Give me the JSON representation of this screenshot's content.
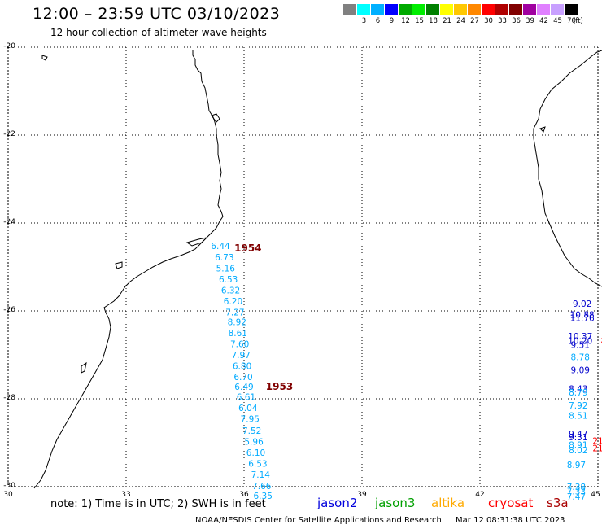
{
  "header": {
    "title": "12:00 – 23:59 UTC 03/10/2023",
    "subtitle": "12 hour collection of altimeter wave heights"
  },
  "legend": {
    "colors": [
      "#808080",
      "#00ffff",
      "#00b0ff",
      "#0000ff",
      "#00aa00",
      "#00ee00",
      "#008000",
      "#ffff00",
      "#ffc800",
      "#ff8800",
      "#ff0000",
      "#b00000",
      "#800000",
      "#a000a0",
      "#e080ff",
      "#c8a0ff",
      "#000000"
    ],
    "labels": [
      "3",
      "6",
      "9",
      "12",
      "15",
      "18",
      "21",
      "24",
      "27",
      "30",
      "33",
      "36",
      "39",
      "42",
      "45",
      "70"
    ],
    "unit": "(ft)"
  },
  "axes": {
    "lat_labels": [
      "-20",
      "-22",
      "-24",
      "-26",
      "-28",
      "-30"
    ],
    "lon_labels": [
      "30",
      "33",
      "36",
      "39",
      "42",
      "45"
    ]
  },
  "tracks": [
    {
      "color": "#00aaff",
      "points": [
        {
          "lon": 35.4,
          "lat": -24.52,
          "v": "6.44"
        },
        {
          "lon": 35.5,
          "lat": -24.78,
          "v": "6.73"
        },
        {
          "lon": 35.53,
          "lat": -25.03,
          "v": "5.16"
        },
        {
          "lon": 35.6,
          "lat": -25.28,
          "v": "6.53"
        },
        {
          "lon": 35.66,
          "lat": -25.53,
          "v": "6.32"
        },
        {
          "lon": 35.72,
          "lat": -25.78,
          "v": "6.20"
        },
        {
          "lon": 35.77,
          "lat": -26.03,
          "v": "7.27"
        },
        {
          "lon": 35.82,
          "lat": -26.25,
          "v": "8.92"
        },
        {
          "lon": 35.84,
          "lat": -26.5,
          "v": "8.61"
        },
        {
          "lon": 35.89,
          "lat": -26.75,
          "v": "7.60"
        },
        {
          "lon": 35.92,
          "lat": -27.0,
          "v": "7.97"
        },
        {
          "lon": 35.95,
          "lat": -27.25,
          "v": "6.80"
        },
        {
          "lon": 35.98,
          "lat": -27.5,
          "v": "6.70"
        },
        {
          "lon": 36.0,
          "lat": -27.72,
          "v": "6.49"
        },
        {
          "lon": 36.05,
          "lat": -27.95,
          "v": "6.61"
        },
        {
          "lon": 36.1,
          "lat": -28.2,
          "v": "6.04"
        },
        {
          "lon": 36.15,
          "lat": -28.45,
          "v": "7.95"
        },
        {
          "lon": 36.2,
          "lat": -28.72,
          "v": "7.52"
        },
        {
          "lon": 36.25,
          "lat": -28.97,
          "v": "5.96"
        },
        {
          "lon": 36.3,
          "lat": -29.22,
          "v": "6.10"
        },
        {
          "lon": 36.35,
          "lat": -29.47,
          "v": "6.53"
        },
        {
          "lon": 36.42,
          "lat": -29.72,
          "v": "7.14"
        },
        {
          "lon": 36.45,
          "lat": -29.98,
          "v": "7.66"
        },
        {
          "lon": 36.48,
          "lat": -30.2,
          "v": "6.35"
        }
      ]
    },
    {
      "color": "#0000cc",
      "points": [
        {
          "lon": 44.6,
          "lat": -25.83,
          "v": "9.02"
        },
        {
          "lon": 44.6,
          "lat": -26.08,
          "v": "10.88"
        },
        {
          "lon": 44.6,
          "lat": -26.16,
          "v": "11.76"
        },
        {
          "lon": 44.55,
          "lat": -26.57,
          "v": "10.37"
        },
        {
          "lon": 44.55,
          "lat": -26.68,
          "v": "10.20"
        },
        {
          "lon": 44.55,
          "lat": -26.77,
          "v": "9.51"
        },
        {
          "lon": 44.55,
          "lat": -27.34,
          "v": "9.09"
        },
        {
          "lon": 44.5,
          "lat": -27.77,
          "v": "8.43"
        },
        {
          "lon": 44.5,
          "lat": -28.8,
          "v": "9.47"
        },
        {
          "lon": 44.5,
          "lat": -28.87,
          "v": "9.31"
        }
      ]
    },
    {
      "color": "#00aaff",
      "points": [
        {
          "lon": 44.55,
          "lat": -27.05,
          "v": "8.78"
        },
        {
          "lon": 44.5,
          "lat": -27.85,
          "v": "8.79"
        },
        {
          "lon": 44.5,
          "lat": -28.15,
          "v": "7.92"
        },
        {
          "lon": 44.5,
          "lat": -28.38,
          "v": "8.51"
        },
        {
          "lon": 44.5,
          "lat": -29.05,
          "v": "8.91"
        },
        {
          "lon": 44.5,
          "lat": -29.17,
          "v": "8.02"
        },
        {
          "lon": 44.45,
          "lat": -29.5,
          "v": "8.97"
        },
        {
          "lon": 44.45,
          "lat": -30.0,
          "v": "7.38"
        },
        {
          "lon": 44.45,
          "lat": -30.1,
          "v": "7.33"
        },
        {
          "lon": 44.45,
          "lat": -30.22,
          "v": "7.47"
        }
      ]
    },
    {
      "color": "#ff0000",
      "points": [
        {
          "lon": 45.0,
          "lat": -28.95,
          "v": "21"
        },
        {
          "lon": 45.0,
          "lat": -29.12,
          "v": "21"
        },
        {
          "lon": 45.1,
          "lat": -26.65,
          "v": ":"
        }
      ]
    }
  ],
  "time_labels": [
    {
      "lon": 36.1,
      "lat": -24.57,
      "v": "1954",
      "color": "#800000"
    },
    {
      "lon": 36.9,
      "lat": -27.72,
      "v": "1953",
      "color": "#800000"
    }
  ],
  "footer": {
    "note": "note:  1) Time is in UTC;  2) SWH is in feet",
    "satellites": [
      {
        "name": "jason2",
        "color": "#0000dd"
      },
      {
        "name": "jason3",
        "color": "#00a000"
      },
      {
        "name": "altika",
        "color": "#ffaa00"
      },
      {
        "name": "cryosat",
        "color": "#ff0000"
      },
      {
        "name": "s3a",
        "color": "#aa0000"
      }
    ],
    "credit": "NOAA/NESDIS Center for Satellite Applications and Research",
    "timestamp": "Mar 12 08:31:38 UTC 2023"
  }
}
